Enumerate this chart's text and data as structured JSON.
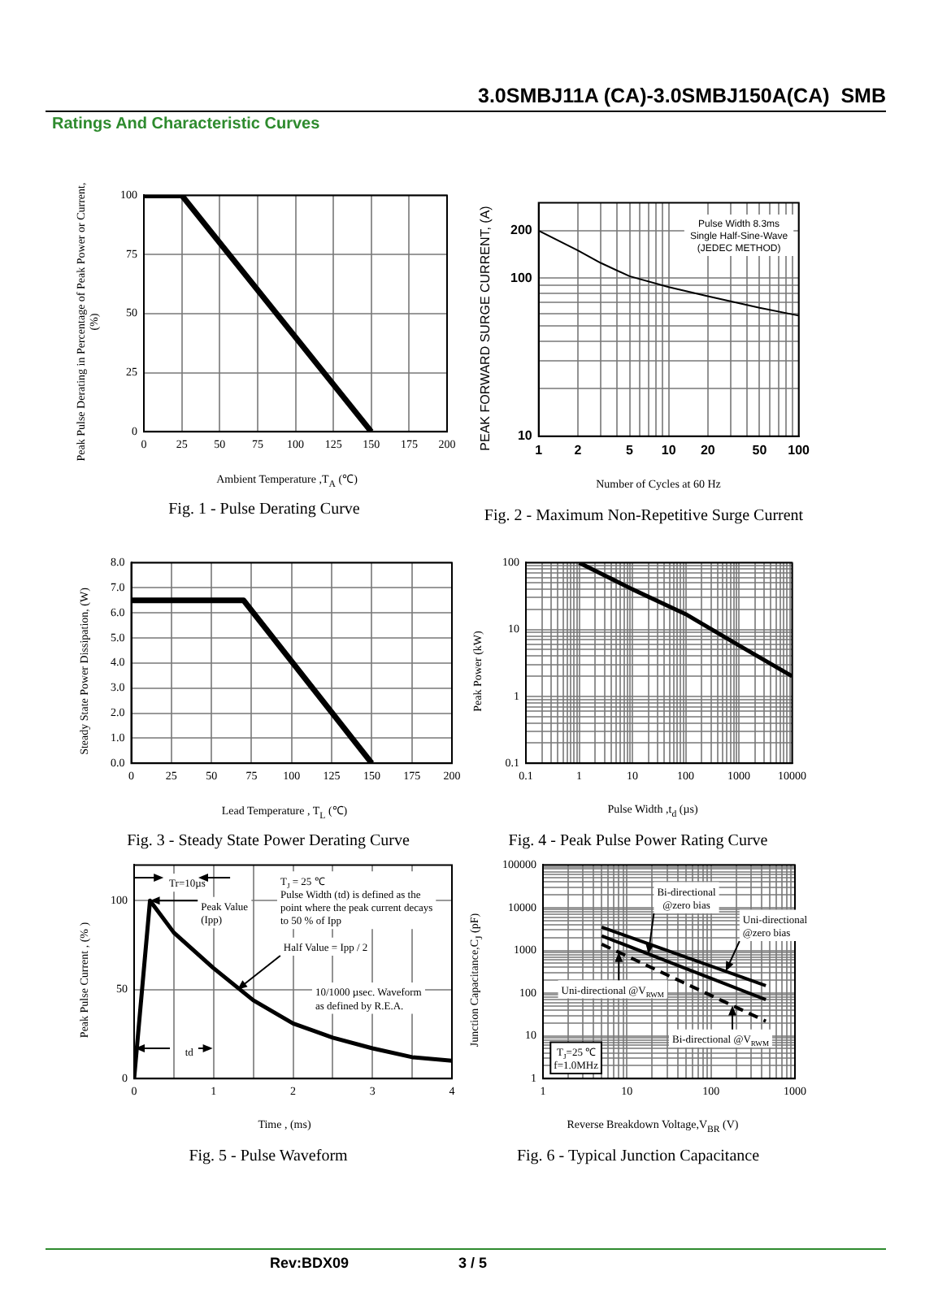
{
  "chart_data": [
    {
      "type": "line",
      "title": "Fig. 1 - Pulse Derating Curve",
      "xlabel": "Ambient Temperature ,T$_{A}$ (℃)",
      "ylabel": "Peak Pulse Derating in Percentage of  Peak Power or Current, (%)",
      "x": [
        0,
        25,
        150
      ],
      "series": [
        {
          "color": "#000000",
          "values": [
            100,
            100,
            0
          ]
        }
      ],
      "xlim": [
        0,
        200
      ],
      "xticks": [
        0,
        25,
        50,
        75,
        100,
        125,
        150,
        175,
        200
      ],
      "ylim": [
        0,
        100
      ],
      "yticks": [
        0,
        25,
        50,
        75,
        100
      ],
      "grid": true,
      "annotations": [
        "3.0SMBJ11A (CA)-3.0SMBJ150A(CA)  SMB",
        "Ratings And Characteristic Curves",
        "Rev:BDX09",
        "3 / 5"
      ]
    },
    {
      "type": "line",
      "title": "Fig. 2 - Maximum Non-Repetitive Surge Current",
      "xlabel": "Number of Cycles at 60 Hz",
      "ylabel": "PEAK FORWARD SURGE CURRENT, (A)",
      "x": [
        1,
        2,
        3,
        5,
        10,
        20,
        50,
        100
      ],
      "series": [
        {
          "color": "#000000",
          "values": [
            200,
            150,
            125,
            103,
            88,
            77,
            65,
            58
          ]
        }
      ],
      "log": "xy",
      "xlim": [
        1,
        100
      ],
      "xticks": [
        1,
        2,
        {
          "value": 3,
          "label": null
        },
        {
          "value": 4,
          "label": null
        },
        5,
        {
          "value": 6,
          "label": null
        },
        {
          "value": 7,
          "label": null
        },
        {
          "value": 8,
          "label": null
        },
        {
          "value": 9,
          "label": null
        },
        10,
        20,
        {
          "value": 30,
          "label": null
        },
        {
          "value": 40,
          "label": null
        },
        50,
        {
          "value": 60,
          "label": null
        },
        {
          "value": 70,
          "label": null
        },
        {
          "value": 80,
          "label": null
        },
        {
          "value": 90,
          "label": null
        },
        100
      ],
      "ylim": [
        10,
        300
      ],
      "yticks": [
        10,
        {
          "value": 20,
          "label": null
        },
        {
          "value": 30,
          "label": null
        },
        {
          "value": 40,
          "label": null
        },
        {
          "value": 50,
          "label": null
        },
        {
          "value": 60,
          "label": null
        },
        {
          "value": 70,
          "label": null
        },
        {
          "value": 80,
          "label": null
        },
        {
          "value": 90,
          "label": null
        },
        100,
        200
      ],
      "grid": true,
      "annotations": [
        "Pulse Width 8.3ms\nSingle Half-Sine-Wave\n(JEDEC METHOD)"
      ]
    },
    {
      "type": "line",
      "title": "Fig. 3 - Steady State Power Derating Curve",
      "xlabel": "Lead Temperature , T$_{L}$ (℃)",
      "ylabel": "Steady State Power Dissipation, (W)",
      "x": [
        0,
        70,
        150
      ],
      "series": [
        {
          "color": "#000000",
          "values": [
            6.5,
            6.5,
            0
          ]
        }
      ],
      "xlim": [
        0,
        200
      ],
      "xticks": [
        0,
        25,
        50,
        75,
        100,
        125,
        150,
        175,
        200
      ],
      "ylim": [
        0,
        8
      ],
      "yticks": [
        {
          "value": 0,
          "label": "0.0"
        },
        {
          "value": 1,
          "label": "1.0"
        },
        {
          "value": 2,
          "label": "2.0"
        },
        {
          "value": 3,
          "label": "3.0"
        },
        {
          "value": 4,
          "label": "4.0"
        },
        {
          "value": 5,
          "label": "5.0"
        },
        {
          "value": 6,
          "label": "6.0"
        },
        {
          "value": 7,
          "label": "7.0"
        },
        {
          "value": 8,
          "label": "8.0"
        }
      ],
      "grid": true
    },
    {
      "type": "line",
      "title": "Fig. 4 - Peak Pulse Power Rating Curve",
      "xlabel": "Pulse Width ,t$_{d}$ (µs)",
      "ylabel": "Peak Power  (kW)",
      "x": [
        1,
        10,
        100,
        1000,
        10000
      ],
      "series": [
        {
          "color": "#000000",
          "values": [
            100,
            40,
            17,
            5.8,
            2
          ]
        }
      ],
      "log": "xy",
      "xlim": [
        0.1,
        10000
      ],
      "xticks": [
        0.1,
        {
          "value": 0.2,
          "label": null
        },
        {
          "value": 0.3,
          "label": null
        },
        {
          "value": 0.4,
          "label": null
        },
        {
          "value": 0.5,
          "label": null
        },
        {
          "value": 0.6,
          "label": null
        },
        {
          "value": 0.7,
          "label": null
        },
        {
          "value": 0.8,
          "label": null
        },
        {
          "value": 0.9,
          "label": null
        },
        1,
        {
          "value": 2,
          "label": null
        },
        {
          "value": 3,
          "label": null
        },
        {
          "value": 4,
          "label": null
        },
        {
          "value": 5,
          "label": null
        },
        {
          "value": 6,
          "label": null
        },
        {
          "value": 7,
          "label": null
        },
        {
          "value": 8,
          "label": null
        },
        {
          "value": 9,
          "label": null
        },
        10,
        {
          "value": 20,
          "label": null
        },
        {
          "value": 30,
          "label": null
        },
        {
          "value": 40,
          "label": null
        },
        {
          "value": 50,
          "label": null
        },
        {
          "value": 60,
          "label": null
        },
        {
          "value": 70,
          "label": null
        },
        {
          "value": 80,
          "label": null
        },
        {
          "value": 90,
          "label": null
        },
        100,
        {
          "value": 200,
          "label": null
        },
        {
          "value": 300,
          "label": null
        },
        {
          "value": 400,
          "label": null
        },
        {
          "value": 500,
          "label": null
        },
        {
          "value": 600,
          "label": null
        },
        {
          "value": 700,
          "label": null
        },
        {
          "value": 800,
          "label": null
        },
        {
          "value": 900,
          "label": null
        },
        1000,
        {
          "value": 2000,
          "label": null
        },
        {
          "value": 3000,
          "label": null
        },
        {
          "value": 4000,
          "label": null
        },
        {
          "value": 5000,
          "label": null
        },
        {
          "value": 6000,
          "label": null
        },
        {
          "value": 7000,
          "label": null
        },
        {
          "value": 8000,
          "label": null
        },
        {
          "value": 9000,
          "label": null
        },
        10000
      ],
      "ylim": [
        0.1,
        100
      ],
      "yticks": [
        0.1,
        {
          "value": 0.2,
          "label": null
        },
        {
          "value": 0.3,
          "label": null
        },
        {
          "value": 0.4,
          "label": null
        },
        {
          "value": 0.5,
          "label": null
        },
        {
          "value": 0.6,
          "label": null
        },
        {
          "value": 0.7,
          "label": null
        },
        {
          "value": 0.8,
          "label": null
        },
        {
          "value": 0.9,
          "label": null
        },
        1,
        {
          "value": 2,
          "label": null
        },
        {
          "value": 3,
          "label": null
        },
        {
          "value": 4,
          "label": null
        },
        {
          "value": 5,
          "label": null
        },
        {
          "value": 6,
          "label": null
        },
        {
          "value": 7,
          "label": null
        },
        {
          "value": 8,
          "label": null
        },
        {
          "value": 9,
          "label": null
        },
        10,
        {
          "value": 20,
          "label": null
        },
        {
          "value": 30,
          "label": null
        },
        {
          "value": 40,
          "label": null
        },
        {
          "value": 50,
          "label": null
        },
        {
          "value": 60,
          "label": null
        },
        {
          "value": 70,
          "label": null
        },
        {
          "value": 80,
          "label": null
        },
        {
          "value": 90,
          "label": null
        },
        100
      ],
      "grid": true
    },
    {
      "type": "line",
      "title": "Fig. 5 - Pulse Waveform",
      "xlabel": "Time , (ms)",
      "ylabel": "Peak Pulse Current , (% )",
      "x": [
        0,
        0.2,
        0.5,
        1,
        1.5,
        2,
        2.5,
        3,
        3.5,
        4
      ],
      "series": [
        {
          "color": "#000000",
          "values": [
            0,
            100,
            82,
            62,
            44,
            31,
            23,
            17,
            12,
            10
          ]
        }
      ],
      "xlim": [
        0,
        4
      ],
      "xticks": [
        0,
        {
          "value": 0.5,
          "label": null
        },
        1,
        {
          "value": 1.5,
          "label": null
        },
        2,
        {
          "value": 2.5,
          "label": null
        },
        3,
        {
          "value": 3.5,
          "label": null
        },
        4
      ],
      "ylim": [
        0,
        120
      ],
      "yticks": [
        0,
        50,
        100
      ],
      "grid": true,
      "annotations": [
        "Tr=10µs",
        {
          "text": "Peak Value\n(Ipp)",
          "x": 0.2,
          "y": 100
        },
        "T$_{J}$ = 25 ℃\nPulse Width (td) is defined as the\npoint where the peak current decays\nto 50 % of Ipp",
        {
          "text": "Half Value = Ipp / 2",
          "x": 1.3,
          "y": 50
        },
        "10/1000 µsec. Waveform\nas defined by R.E.A.",
        "td"
      ]
    },
    {
      "type": "line",
      "title": "Fig. 6 - Typical Junction Capacitance",
      "xlabel": "Reverse  Breakdown Voltage,V$_{BR}$ (V)",
      "ylabel": "Junction Capacitance,C$_{J}$ (pF)",
      "x": [
        5,
        450
      ],
      "series": [
        {
          "color": "#000000",
          "values": [
            3500,
            150
          ]
        },
        {
          "color": "#000000",
          "values": [
            2200,
            70
          ]
        },
        {
          "color": "#000000",
          "values": [
            1400,
            22
          ],
          "line_style": "dashed"
        }
      ],
      "log": "xy",
      "xlim": [
        1,
        1000
      ],
      "xticks": [
        1,
        {
          "value": 2,
          "label": null
        },
        {
          "value": 3,
          "label": null
        },
        {
          "value": 4,
          "label": null
        },
        {
          "value": 5,
          "label": null
        },
        {
          "value": 6,
          "label": null
        },
        {
          "value": 7,
          "label": null
        },
        {
          "value": 8,
          "label": null
        },
        {
          "value": 9,
          "label": null
        },
        10,
        {
          "value": 20,
          "label": null
        },
        {
          "value": 30,
          "label": null
        },
        {
          "value": 40,
          "label": null
        },
        {
          "value": 50,
          "label": null
        },
        {
          "value": 60,
          "label": null
        },
        {
          "value": 70,
          "label": null
        },
        {
          "value": 80,
          "label": null
        },
        {
          "value": 90,
          "label": null
        },
        100,
        {
          "value": 200,
          "label": null
        },
        {
          "value": 300,
          "label": null
        },
        {
          "value": 400,
          "label": null
        },
        {
          "value": 500,
          "label": null
        },
        {
          "value": 600,
          "label": null
        },
        {
          "value": 700,
          "label": null
        },
        {
          "value": 800,
          "label": null
        },
        {
          "value": 900,
          "label": null
        },
        1000
      ],
      "ylim": [
        1,
        100000
      ],
      "yticks": [
        1,
        {
          "value": 2,
          "label": null
        },
        {
          "value": 3,
          "label": null
        },
        {
          "value": 4,
          "label": null
        },
        {
          "value": 5,
          "label": null
        },
        {
          "value": 6,
          "label": null
        },
        {
          "value": 7,
          "label": null
        },
        {
          "value": 8,
          "label": null
        },
        {
          "value": 9,
          "label": null
        },
        10,
        {
          "value": 20,
          "label": null
        },
        {
          "value": 30,
          "label": null
        },
        {
          "value": 40,
          "label": null
        },
        {
          "value": 50,
          "label": null
        },
        {
          "value": 60,
          "label": null
        },
        {
          "value": 70,
          "label": null
        },
        {
          "value": 80,
          "label": null
        },
        {
          "value": 90,
          "label": null
        },
        100,
        {
          "value": 200,
          "label": null
        },
        {
          "value": 300,
          "label": null
        },
        {
          "value": 400,
          "label": null
        },
        {
          "value": 500,
          "label": null
        },
        {
          "value": 600,
          "label": null
        },
        {
          "value": 700,
          "label": null
        },
        {
          "value": 800,
          "label": null
        },
        {
          "value": 900,
          "label": null
        },
        1000,
        {
          "value": 2000,
          "label": null
        },
        {
          "value": 3000,
          "label": null
        },
        {
          "value": 4000,
          "label": null
        },
        {
          "value": 5000,
          "label": null
        },
        {
          "value": 6000,
          "label": null
        },
        {
          "value": 7000,
          "label": null
        },
        {
          "value": 8000,
          "label": null
        },
        {
          "value": 9000,
          "label": null
        },
        10000,
        {
          "value": 20000,
          "label": null
        },
        {
          "value": 30000,
          "label": null
        },
        {
          "value": 40000,
          "label": null
        },
        {
          "value": 50000,
          "label": null
        },
        {
          "value": 60000,
          "label": null
        },
        {
          "value": 70000,
          "label": null
        },
        {
          "value": 80000,
          "label": null
        },
        {
          "value": 90000,
          "label": null
        },
        100000
      ],
      "grid": true,
      "annotations": [
        {
          "text": "Bi-directional\n@zero bias",
          "x": 18,
          "y": 825
        },
        {
          "text": "Uni-directional\n@zero bias",
          "x": 150,
          "y": 323
        },
        {
          "text": "Uni-directional @V$_{RWM}$",
          "x": 8,
          "y": 907
        },
        {
          "text": "Bi-directional @V$_{RWM}$",
          "x": 180,
          "y": 51
        },
        "T$_{J}$=25 ℃\nf=1.0MHz"
      ]
    }
  ]
}
